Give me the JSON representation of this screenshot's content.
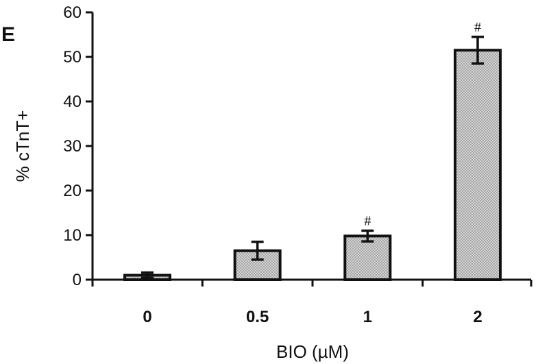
{
  "panel_label": "E",
  "chart_data": {
    "type": "bar",
    "categories": [
      "0",
      "0.5",
      "1",
      "2"
    ],
    "values": [
      1,
      6.5,
      9.8,
      51.5
    ],
    "errors": [
      0.6,
      2.0,
      1.2,
      3.0
    ],
    "annotations": [
      "",
      "",
      "#",
      "#"
    ],
    "xlabel": "BIO (µM)",
    "ylabel": "% cTnT+",
    "ylim": [
      0,
      60
    ],
    "yticks": [
      0,
      10,
      20,
      30,
      40,
      50,
      60
    ],
    "grid": false,
    "bar_fill": "#c4c4c4",
    "bar_stroke": "#111111"
  }
}
